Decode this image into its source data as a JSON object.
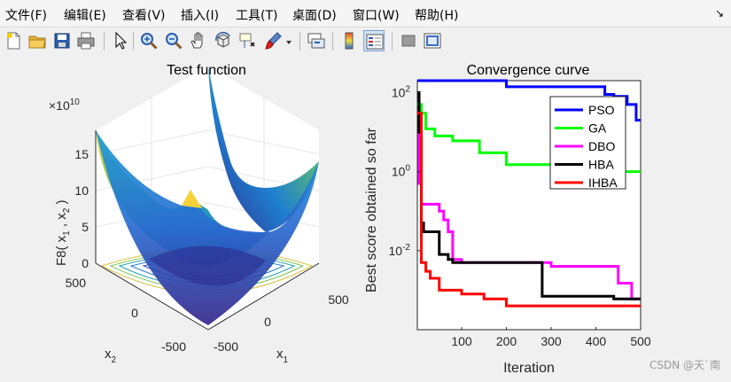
{
  "menu": [
    {
      "label": "文件(F)",
      "x": 6
    },
    {
      "label": "编辑(E)",
      "x": 72
    },
    {
      "label": "查看(V)",
      "x": 138
    },
    {
      "label": "插入(I)",
      "x": 204
    },
    {
      "label": "工具(T)",
      "x": 266
    },
    {
      "label": "桌面(D)",
      "x": 330
    },
    {
      "label": "窗口(W)",
      "x": 398
    },
    {
      "label": "帮助(H)",
      "x": 468
    }
  ],
  "menu_arrow": "↘",
  "toolbar_icons": [
    "new-file-icon",
    "open-folder-icon",
    "save-icon",
    "print-icon",
    "pointer-icon",
    "zoom-in-icon",
    "zoom-out-icon",
    "pan-hand-icon",
    "rotate-3d-icon",
    "data-cursor-icon",
    "brush-icon",
    "brush-dropdown-icon",
    "link-plot-icon",
    "colorbar-icon",
    "legend-icon",
    "hide-plot-tools-icon",
    "show-plot-tools-icon"
  ],
  "left_plot": {
    "title": "Test function",
    "exponent_label_base": "×10",
    "exponent_label_power": "10",
    "z_axis_label": "F8( x",
    "z_ticks": [
      "0",
      "5",
      "10",
      "15"
    ],
    "y_ticks": [
      "500",
      "0",
      "-500"
    ],
    "x_ticks": [
      "-500",
      "0",
      "500"
    ],
    "x_label": "x",
    "x_label_sub": "1",
    "y_label": "x",
    "y_label_sub": "2"
  },
  "right_plot": {
    "title": "Convergence curve",
    "y_label": "Best score obtained so far",
    "x_label": "Iteration",
    "x_ticks": [
      "100",
      "200",
      "300",
      "400",
      "500"
    ],
    "y_ticks_base": [
      "10",
      "10",
      "10"
    ],
    "y_ticks_power": [
      "2",
      "0",
      "-2"
    ],
    "legend": [
      {
        "name": "PSO",
        "color": "#0000ff"
      },
      {
        "name": "GA",
        "color": "#00ff00"
      },
      {
        "name": "DBO",
        "color": "#ff00ff"
      },
      {
        "name": "HBA",
        "color": "#000000"
      },
      {
        "name": "IHBA",
        "color": "#ff0000"
      }
    ]
  },
  "chart_data": {
    "type": "line",
    "title": "Convergence curve",
    "xlabel": "Iteration",
    "ylabel": "Best score obtained so far",
    "yscale": "log",
    "xlim": [
      1,
      500
    ],
    "ylim": [
      0.0001,
      200
    ],
    "legend_position": "top-right",
    "series": [
      {
        "name": "PSO",
        "color": "#0000ff",
        "x": [
          1,
          70,
          200,
          420,
          440,
          470,
          490,
          500
        ],
        "y": [
          200,
          200,
          140,
          90,
          80,
          50,
          20,
          20
        ]
      },
      {
        "name": "GA",
        "color": "#00ff00",
        "x": [
          1,
          10,
          20,
          40,
          80,
          140,
          200,
          300,
          350,
          500
        ],
        "y": [
          50,
          30,
          12,
          8,
          6,
          3,
          1.5,
          1.2,
          1.0,
          1.0
        ]
      },
      {
        "name": "DBO",
        "color": "#ff00ff",
        "x": [
          1,
          5,
          10,
          30,
          50,
          60,
          70,
          80,
          100,
          200,
          300,
          420,
          450,
          480,
          500
        ],
        "y": [
          30,
          0.5,
          0.15,
          0.15,
          0.1,
          0.06,
          0.03,
          0.006,
          0.005,
          0.005,
          0.004,
          0.004,
          0.0015,
          0.0006,
          0.0006
        ]
      },
      {
        "name": "HBA",
        "color": "#000000",
        "x": [
          1,
          5,
          10,
          15,
          20,
          50,
          70,
          80,
          100,
          200,
          280,
          440,
          450,
          500
        ],
        "y": [
          100,
          10,
          0.05,
          0.03,
          0.03,
          0.008,
          0.006,
          0.005,
          0.005,
          0.005,
          0.0007,
          0.0006,
          0.0006,
          0.0006
        ]
      },
      {
        "name": "IHBA",
        "color": "#ff0000",
        "x": [
          1,
          10,
          20,
          30,
          50,
          80,
          100,
          150,
          200,
          280,
          350,
          500
        ],
        "y": [
          30,
          0.005,
          0.003,
          0.002,
          0.001,
          0.001,
          0.0008,
          0.0006,
          0.0004,
          0.0004,
          0.0004,
          0.0004
        ]
      }
    ]
  },
  "watermark": "CSDN @天`南"
}
